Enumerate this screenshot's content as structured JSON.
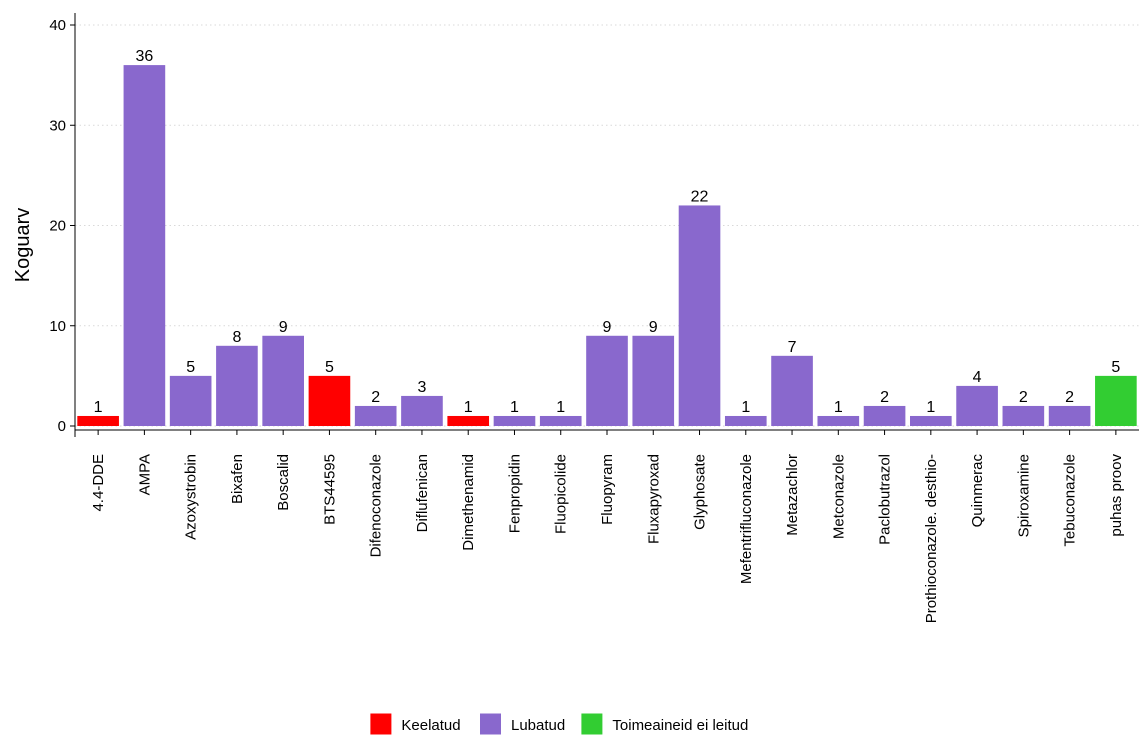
{
  "chart_data": {
    "type": "bar",
    "title": "",
    "xlabel": "",
    "ylabel": "Koguarv",
    "ylim": [
      0,
      40
    ],
    "yticks": [
      0,
      10,
      20,
      30,
      40
    ],
    "grid": "horizontal-dotted",
    "legend_position": "bottom",
    "categories": [
      "4.4-DDE",
      "AMPA",
      "Azoxystrobin",
      "Bixafen",
      "Boscalid",
      "BTS44595",
      "Difenoconazole",
      "Diflufenican",
      "Dimethenamid",
      "Fenpropidin",
      "Fluopicolide",
      "Fluopyram",
      "Fluxapyroxad",
      "Glyphosate",
      "Mefentrifluconazole",
      "Metazachlor",
      "Metconazole",
      "Paclobutrazol",
      "Prothioconazole. desthio-",
      "Quinmerac",
      "Spiroxamine",
      "Tebuconazole",
      "puhas proov"
    ],
    "values": [
      1,
      36,
      5,
      8,
      9,
      5,
      2,
      3,
      1,
      1,
      1,
      9,
      9,
      22,
      1,
      7,
      1,
      2,
      1,
      4,
      2,
      2,
      5
    ],
    "groups": [
      "Keelatud",
      "Lubatud",
      "Lubatud",
      "Lubatud",
      "Lubatud",
      "Keelatud",
      "Lubatud",
      "Lubatud",
      "Keelatud",
      "Lubatud",
      "Lubatud",
      "Lubatud",
      "Lubatud",
      "Lubatud",
      "Lubatud",
      "Lubatud",
      "Lubatud",
      "Lubatud",
      "Lubatud",
      "Lubatud",
      "Lubatud",
      "Lubatud",
      "Toimeaineid ei leitud"
    ],
    "legend": [
      {
        "name": "Keelatud",
        "color": "#ff0000"
      },
      {
        "name": "Lubatud",
        "color": "#8968cd"
      },
      {
        "name": "Toimeaineid ei leitud",
        "color": "#32cd32"
      }
    ]
  }
}
